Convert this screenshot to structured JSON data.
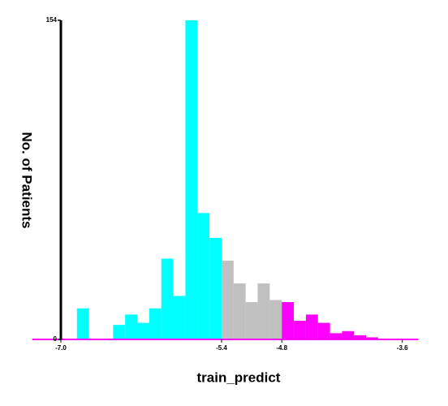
{
  "chart_data": {
    "type": "histogram",
    "x_label": "train_predict",
    "y_label": "No. of Patients",
    "bins": [
      -6.84,
      -6.72,
      -6.6,
      -6.48,
      -6.36,
      -6.24,
      -6.12,
      -6.0,
      -5.88,
      -5.76,
      -5.64,
      -5.52,
      -5.4,
      -5.28,
      -5.16,
      -5.04,
      -4.92,
      -4.8,
      -4.68,
      -4.56,
      -4.44,
      -4.32,
      -4.2,
      -4.08,
      -3.96,
      -3.84
    ],
    "counts": [
      15,
      0,
      0,
      7,
      12,
      8,
      15,
      39,
      21,
      154,
      61,
      49,
      38,
      27,
      18,
      27,
      19,
      18,
      9,
      12,
      8,
      3,
      4,
      2,
      1
    ],
    "colors": [
      "#00ffff",
      "#00ffff",
      "#00ffff",
      "#00ffff",
      "#00ffff",
      "#00ffff",
      "#00ffff",
      "#00ffff",
      "#00ffff",
      "#00ffff",
      "#00ffff",
      "#00ffff",
      "#c0c0c0",
      "#c0c0c0",
      "#c0c0c0",
      "#c0c0c0",
      "#c0c0c0",
      "#ff00ff",
      "#ff00ff",
      "#ff00ff",
      "#ff00ff",
      "#ff00ff",
      "#ff00ff",
      "#ff00ff",
      "#ff00ff"
    ],
    "xlim": [
      -7.0,
      -3.44
    ],
    "ylim": [
      0,
      154
    ],
    "xticks": [
      {
        "value": -7.0,
        "label": "-7.0"
      },
      -5.4,
      -4.8,
      -3.6
    ],
    "yticks": [
      0,
      154
    ],
    "baseline_color": "#ff00ff",
    "axis_color": "#000000"
  }
}
